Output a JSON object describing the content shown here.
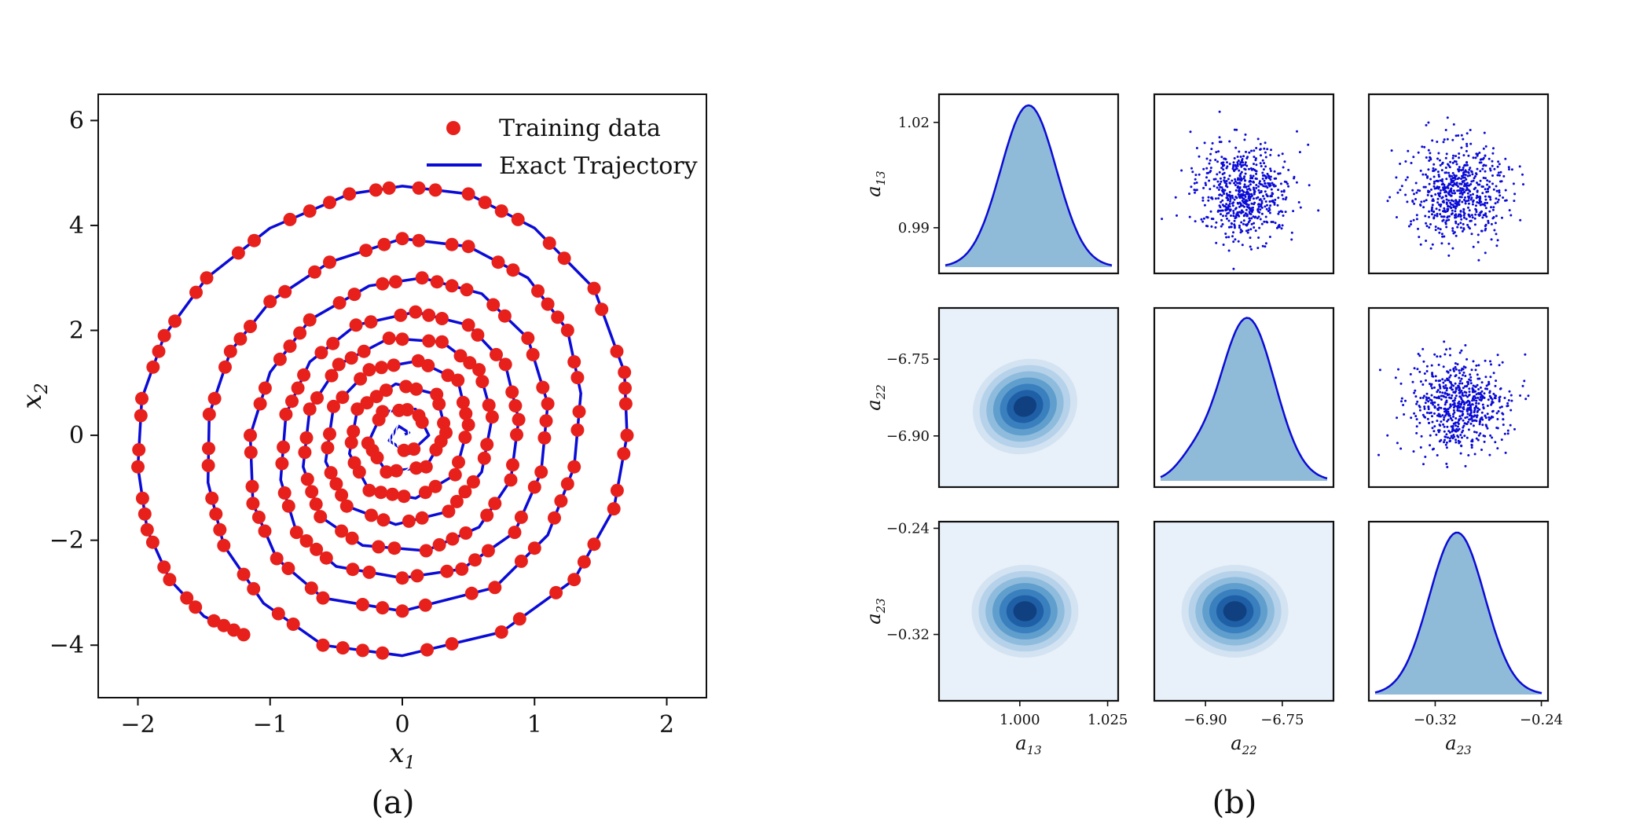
{
  "chart_data": [
    {
      "panel": "(a)",
      "type": "scatter",
      "xlabel": "x_1",
      "ylabel": "x_2",
      "xlim": [
        -2.3,
        2.3
      ],
      "ylim": [
        -5.0,
        6.5
      ],
      "xticks": [
        -2,
        -1,
        0,
        1,
        2
      ],
      "xtick_labels": [
        "−2",
        "−1",
        "0",
        "1",
        "2"
      ],
      "yticks": [
        -4,
        -2,
        0,
        2,
        4,
        6
      ],
      "ytick_labels": [
        "−4",
        "−2",
        "0",
        "2",
        "4",
        "6"
      ],
      "legend": {
        "placement": "top-right",
        "entries": [
          "Training data",
          "Exact Trajectory"
        ]
      },
      "colors": {
        "training": "#e8201c",
        "trajectory": "#0b0bd6"
      },
      "series": [
        {
          "name": "Exact Trajectory",
          "kind": "line",
          "points": [
            [
              -1.2,
              -3.8
            ],
            [
              -1.5,
              -3.45
            ],
            [
              -1.76,
              -2.75
            ],
            [
              -1.93,
              -1.8
            ],
            [
              -2.0,
              -0.6
            ],
            [
              -1.97,
              0.7
            ],
            [
              -1.8,
              1.9
            ],
            [
              -1.48,
              3.0
            ],
            [
              -1.0,
              3.95
            ],
            [
              -0.4,
              4.6
            ],
            [
              0.0,
              4.75
            ],
            [
              0.5,
              4.6
            ],
            [
              1.0,
              3.95
            ],
            [
              1.45,
              2.8
            ],
            [
              1.68,
              1.2
            ],
            [
              1.7,
              0.0
            ],
            [
              1.6,
              -1.4
            ],
            [
              1.3,
              -2.75
            ],
            [
              0.75,
              -3.75
            ],
            [
              0.0,
              -4.2
            ],
            [
              -0.6,
              -4.0
            ],
            [
              -1.05,
              -3.2
            ],
            [
              -1.35,
              -2.1
            ],
            [
              -1.47,
              -0.9
            ],
            [
              -1.46,
              0.4
            ],
            [
              -1.3,
              1.6
            ],
            [
              -1.0,
              2.55
            ],
            [
              -0.55,
              3.3
            ],
            [
              0.0,
              3.75
            ],
            [
              0.5,
              3.6
            ],
            [
              0.95,
              3.0
            ],
            [
              1.25,
              2.0
            ],
            [
              1.35,
              0.8
            ],
            [
              1.3,
              -0.6
            ],
            [
              1.1,
              -1.9
            ],
            [
              0.7,
              -2.9
            ],
            [
              0.0,
              -3.35
            ],
            [
              -0.6,
              -3.1
            ],
            [
              -0.95,
              -2.35
            ],
            [
              -1.13,
              -1.3
            ],
            [
              -1.15,
              0.0
            ],
            [
              -1.0,
              1.2
            ],
            [
              -0.7,
              2.2
            ],
            [
              -0.25,
              2.85
            ],
            [
              0.15,
              3.0
            ],
            [
              0.6,
              2.7
            ],
            [
              0.95,
              1.85
            ],
            [
              1.1,
              0.6
            ],
            [
              1.05,
              -0.7
            ],
            [
              0.85,
              -1.85
            ],
            [
              0.45,
              -2.55
            ],
            [
              0.0,
              -2.72
            ],
            [
              -0.5,
              -2.5
            ],
            [
              -0.8,
              -1.85
            ],
            [
              -0.92,
              -0.85
            ],
            [
              -0.88,
              0.4
            ],
            [
              -0.7,
              1.4
            ],
            [
              -0.35,
              2.1
            ],
            [
              0.1,
              2.35
            ],
            [
              0.5,
              2.1
            ],
            [
              0.78,
              1.35
            ],
            [
              0.88,
              0.3
            ],
            [
              0.82,
              -0.85
            ],
            [
              0.58,
              -1.75
            ],
            [
              0.18,
              -2.2
            ],
            [
              -0.3,
              -2.1
            ],
            [
              -0.62,
              -1.55
            ],
            [
              -0.75,
              -0.6
            ],
            [
              -0.7,
              0.5
            ],
            [
              -0.48,
              1.35
            ],
            [
              -0.1,
              1.85
            ],
            [
              0.3,
              1.78
            ],
            [
              0.58,
              1.25
            ],
            [
              0.68,
              0.35
            ],
            [
              0.6,
              -0.7
            ],
            [
              0.35,
              -1.45
            ],
            [
              -0.05,
              -1.7
            ],
            [
              -0.42,
              -1.35
            ],
            [
              -0.58,
              -0.5
            ],
            [
              -0.52,
              0.55
            ],
            [
              -0.25,
              1.25
            ],
            [
              0.12,
              1.42
            ],
            [
              0.42,
              1.05
            ],
            [
              0.5,
              0.2
            ],
            [
              0.4,
              -0.75
            ],
            [
              0.1,
              -1.2
            ],
            [
              -0.25,
              -1.05
            ],
            [
              -0.4,
              -0.35
            ],
            [
              -0.34,
              0.5
            ],
            [
              -0.05,
              0.98
            ],
            [
              0.26,
              0.78
            ],
            [
              0.33,
              0.05
            ],
            [
              0.18,
              -0.6
            ],
            [
              -0.12,
              -0.7
            ],
            [
              -0.26,
              -0.15
            ],
            [
              -0.15,
              0.45
            ],
            [
              0.1,
              0.5
            ],
            [
              0.2,
              0.0
            ],
            [
              0.05,
              -0.35
            ],
            [
              -0.1,
              -0.1
            ],
            [
              -0.03,
              0.18
            ],
            [
              0.05,
              0.05
            ],
            [
              0.0,
              0.0
            ]
          ]
        },
        {
          "name": "Training data",
          "kind": "markers",
          "sampled_along": "Exact Trajectory"
        }
      ]
    },
    {
      "panel": "(b)",
      "type": "pair-plot",
      "params": [
        "a_13",
        "a_22",
        "a_23"
      ],
      "param_means": [
        1.005,
        -6.82,
        -0.295
      ],
      "param_sd": [
        0.0085,
        0.045,
        0.022
      ],
      "ranges": [
        [
          0.977,
          1.028
        ],
        [
          -7.0,
          -6.65
        ],
        [
          -0.37,
          -0.235
        ]
      ],
      "ticks": [
        [
          0.99,
          1.02
        ],
        [
          -6.9,
          -6.75
        ],
        [
          -0.32,
          -0.24
        ]
      ],
      "diag_ticks_x": [
        [
          1.0,
          1.025
        ],
        [
          -6.9,
          -6.75
        ],
        [
          -0.32,
          -0.24
        ]
      ],
      "tick_labels_y": [
        [
          "0.99",
          "1.02"
        ],
        [
          "−6.90",
          "−6.75"
        ],
        [
          "−0.32",
          "−0.24"
        ]
      ],
      "tick_labels_x": [
        [
          "1.000",
          "1.025"
        ],
        [
          "−6.90",
          "−6.75"
        ],
        [
          "−0.32",
          "−0.24"
        ]
      ],
      "diag_kind": "kde",
      "upper_kind": "scatter",
      "lower_kind": "kde-contour",
      "colors": {
        "fill": "#8fbbd9",
        "line": "#0b0bd6",
        "points": "#0b0bd6"
      }
    }
  ],
  "captions": [
    "(a)",
    "(b)"
  ]
}
